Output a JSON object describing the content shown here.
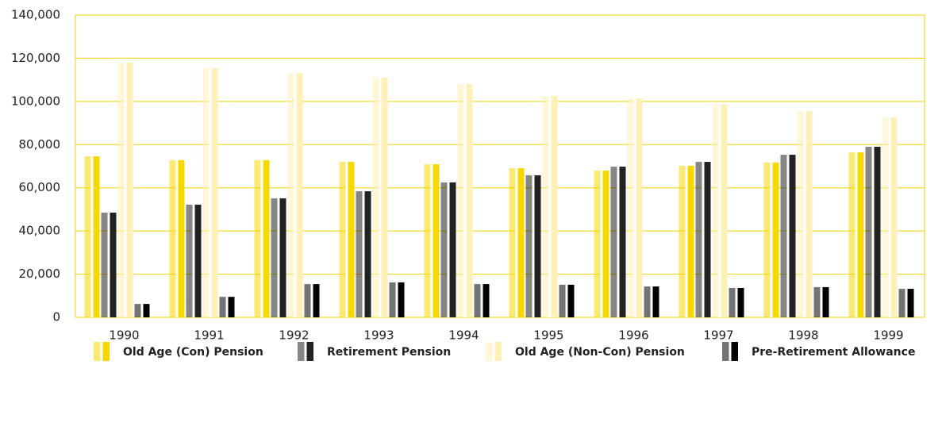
{
  "chart_data": {
    "type": "bar",
    "categories": [
      "1990",
      "1991",
      "1992",
      "1993",
      "1994",
      "1995",
      "1996",
      "1997",
      "1998",
      "1999"
    ],
    "series": [
      {
        "name": "Old Age (Con) Pension",
        "color": "#f5d800",
        "values": [
          74600,
          72800,
          72800,
          72000,
          70900,
          69100,
          68000,
          70200,
          71700,
          76400
        ]
      },
      {
        "name": "Retirement Pension",
        "color": "#222222",
        "values": [
          48500,
          52200,
          55100,
          58400,
          62500,
          65800,
          69800,
          72000,
          75300,
          79000
        ]
      },
      {
        "name": "Old Age (Non-Con) Pension",
        "color": "#fff0b8",
        "values": [
          118000,
          115400,
          113200,
          111000,
          108000,
          102500,
          101400,
          98500,
          95500,
          92600
        ]
      },
      {
        "name": "Pre-Retirement Allowance",
        "color": "#000000",
        "values": [
          6200,
          9500,
          15400,
          16200,
          15400,
          15100,
          14300,
          13600,
          14000,
          13200
        ]
      }
    ],
    "ylim": [
      0,
      140000
    ],
    "yticks": [
      0,
      {
        "value": 20000,
        "label": "20,000"
      },
      {
        "value": 40000,
        "label": "40,000"
      },
      {
        "value": 60000,
        "label": "60,000"
      },
      {
        "value": 80000,
        "label": "80,000"
      },
      {
        "value": 100000,
        "label": "100,000"
      },
      {
        "value": 120000,
        "label": "120,000"
      },
      {
        "value": 140000,
        "label": "140,000"
      }
    ],
    "grid": true,
    "legend": "bottom"
  }
}
